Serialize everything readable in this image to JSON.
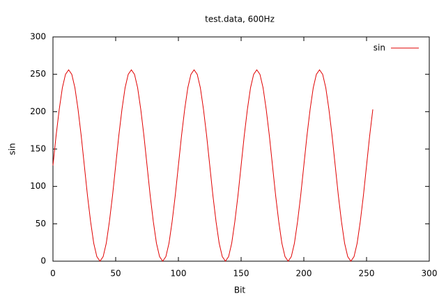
{
  "chart_data": {
    "type": "line",
    "title": "test.data, 600Hz",
    "x_label": "Bit",
    "y_label": "sin",
    "x": [
      0,
      2.5,
      5,
      7.5,
      10,
      12.5,
      15,
      17.5,
      20,
      22.5,
      25,
      27.5,
      30,
      32.5,
      35,
      37.5,
      40,
      42.5,
      45,
      47.5,
      50,
      52.5,
      55,
      57.5,
      60,
      62.5,
      65,
      67.5,
      70,
      72.5,
      75,
      77.5,
      80,
      82.5,
      85,
      87.5,
      90,
      92.5,
      95,
      97.5,
      100,
      102.5,
      105,
      107.5,
      110,
      112.5,
      115,
      117.5,
      120,
      122.5,
      125,
      127.5,
      130,
      132.5,
      135,
      137.5,
      140,
      142.5,
      145,
      147.5,
      150,
      152.5,
      155,
      157.5,
      160,
      162.5,
      165,
      167.5,
      170,
      172.5,
      175,
      177.5,
      180,
      182.5,
      185,
      187.5,
      190,
      192.5,
      195,
      197.5,
      200,
      202.5,
      205,
      207.5,
      210,
      212.5,
      215,
      217.5,
      220,
      222.5,
      225,
      227.5,
      230,
      232.5,
      235,
      237.5,
      240,
      242.5,
      245,
      247.5,
      250,
      252.5,
      255
    ],
    "series": [
      {
        "name": "sin",
        "color": "#e00000",
        "values": [
          128,
          168,
          203,
          232,
          250,
          256,
          250,
          232,
          203,
          168,
          128,
          88,
          53,
          24,
          6,
          0,
          6,
          24,
          53,
          88,
          128,
          168,
          203,
          232,
          250,
          256,
          250,
          232,
          203,
          168,
          128,
          88,
          53,
          24,
          6,
          0,
          6,
          24,
          53,
          88,
          128,
          168,
          203,
          232,
          250,
          256,
          250,
          232,
          203,
          168,
          128,
          88,
          53,
          24,
          6,
          0,
          6,
          24,
          53,
          88,
          128,
          168,
          203,
          232,
          250,
          256,
          250,
          232,
          203,
          168,
          128,
          88,
          53,
          24,
          6,
          0,
          6,
          24,
          53,
          88,
          128,
          168,
          203,
          232,
          250,
          256,
          250,
          232,
          203,
          168,
          128,
          88,
          53,
          24,
          6,
          0,
          6,
          24,
          53,
          88,
          128,
          168,
          203
        ]
      }
    ],
    "xlim": [
      0,
      300
    ],
    "xticks": [
      0,
      50,
      100,
      150,
      200,
      250,
      300
    ],
    "ylim": [
      0,
      300
    ],
    "yticks": [
      0,
      50,
      100,
      150,
      200,
      250,
      300
    ],
    "grid": false,
    "legend": "top-right"
  }
}
